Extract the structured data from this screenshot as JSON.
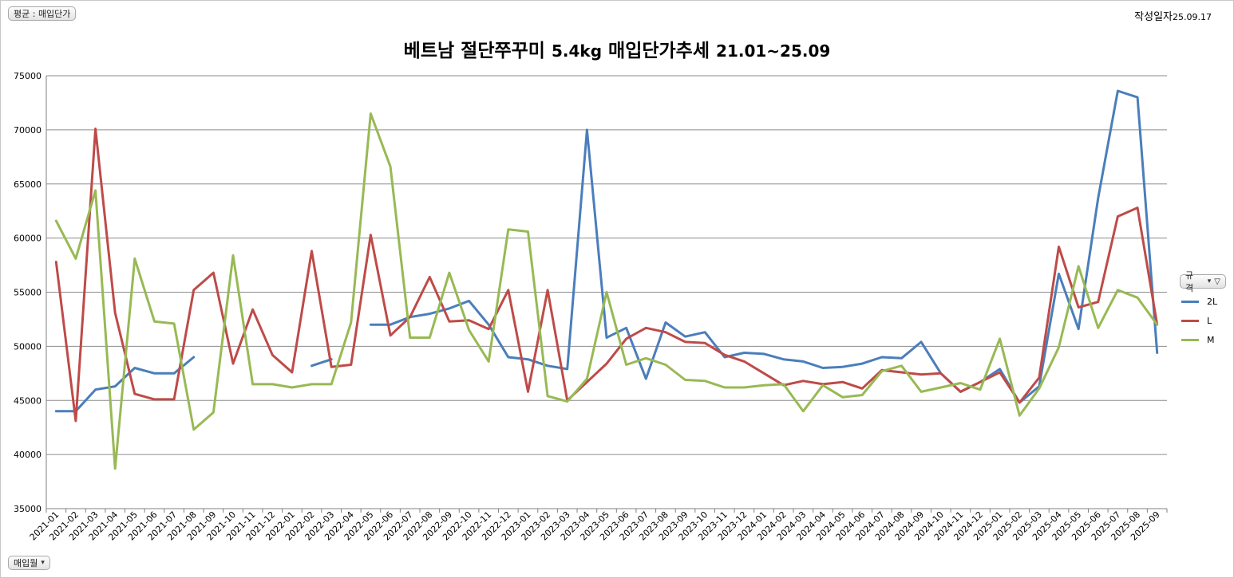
{
  "header": {
    "avg_button_label": "평균 : 매입단가",
    "date_label": "작성일자",
    "date_value": "25.09.17"
  },
  "footer": {
    "month_button_label": "매입월"
  },
  "legend_button_label": "규격",
  "chart_data": {
    "type": "line",
    "title_text": "베트남 절단쭈꾸미",
    "title_num1": "5.4kg",
    "title_text2": "매입단가추세",
    "title_num2": "21.01~25.09",
    "ylim": [
      35000,
      75000
    ],
    "yticks": [
      35000,
      40000,
      45000,
      50000,
      55000,
      60000,
      65000,
      70000,
      75000
    ],
    "grid": true,
    "legend_position": "right",
    "categories": [
      "2021-01",
      "2021-02",
      "2021-03",
      "2021-04",
      "2021-05",
      "2021-06",
      "2021-07",
      "2021-08",
      "2021-09",
      "2021-10",
      "2021-11",
      "2021-12",
      "2022-01",
      "2022-02",
      "2022-03",
      "2022-04",
      "2022-05",
      "2022-06",
      "2022-07",
      "2022-08",
      "2022-09",
      "2022-10",
      "2022-11",
      "2022-12",
      "2023-01",
      "2023-02",
      "2023-03",
      "2023-04",
      "2023-05",
      "2023-06",
      "2023-07",
      "2023-08",
      "2023-09",
      "2023-10",
      "2023-11",
      "2023-12",
      "2024-01",
      "2024-02",
      "2024-03",
      "2024-04",
      "2024-05",
      "2024-06",
      "2024-07",
      "2024-08",
      "2024-09",
      "2024-10",
      "2024-11",
      "2024-12",
      "2025-01",
      "2025-02",
      "2025-03",
      "2025-04",
      "2025-05",
      "2025-06",
      "2025-07",
      "2025-08",
      "2025-09"
    ],
    "series": [
      {
        "name": "2L",
        "color": "#4a7ebb",
        "values": [
          44000,
          44000,
          46000,
          46300,
          48000,
          47500,
          47500,
          49000,
          null,
          null,
          null,
          null,
          null,
          48200,
          48800,
          null,
          52000,
          52000,
          52700,
          53000,
          53500,
          54200,
          52000,
          49000,
          48800,
          48200,
          47900,
          70000,
          50800,
          51700,
          47000,
          52200,
          50900,
          51300,
          49000,
          49400,
          49300,
          48800,
          48600,
          48000,
          48100,
          48400,
          49000,
          48900,
          50400,
          47500,
          45800,
          46700,
          47900,
          44800,
          46300,
          56700,
          51600,
          63700,
          73600,
          73000,
          49400
        ]
      },
      {
        "name": "L",
        "color": "#be4b48",
        "values": [
          57800,
          43100,
          70100,
          53100,
          45600,
          45100,
          45100,
          55200,
          56800,
          48400,
          53400,
          49200,
          47600,
          58800,
          48100,
          48300,
          60300,
          51000,
          52700,
          56400,
          52300,
          52400,
          51600,
          55200,
          45800,
          55200,
          45000,
          46700,
          48400,
          50700,
          51700,
          51300,
          50400,
          50300,
          49200,
          48600,
          47500,
          46400,
          46800,
          46500,
          46700,
          46100,
          47800,
          47600,
          47400,
          47500,
          45800,
          46700,
          47600,
          44800,
          47100,
          59200,
          53600,
          54100,
          62000,
          62800,
          52000
        ]
      },
      {
        "name": "M",
        "color": "#98b954",
        "values": [
          61600,
          58100,
          64400,
          38700,
          58100,
          52300,
          52100,
          42300,
          43900,
          58400,
          46500,
          46500,
          46200,
          46500,
          46500,
          52200,
          71500,
          66600,
          50800,
          50800,
          56800,
          51500,
          48600,
          60800,
          60600,
          45400,
          44900,
          47000,
          55000,
          48300,
          48900,
          48300,
          46900,
          46800,
          46200,
          46200,
          46400,
          46500,
          44000,
          46400,
          45300,
          45500,
          47700,
          48200,
          45800,
          46200,
          46600,
          46000,
          50700,
          43600,
          46100,
          49900,
          57400,
          51700,
          55200,
          54500,
          52000
        ]
      }
    ]
  }
}
